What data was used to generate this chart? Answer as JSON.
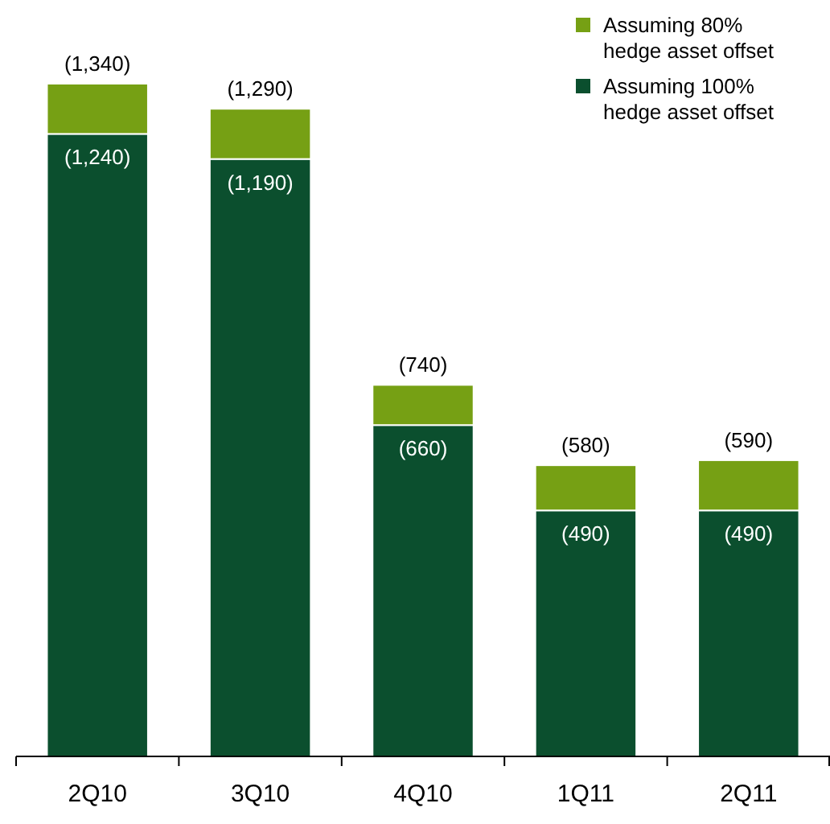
{
  "chart_data": {
    "type": "bar",
    "stacked": true,
    "categories": [
      "2Q10",
      "3Q10",
      "4Q10",
      "1Q11",
      "2Q11"
    ],
    "series": [
      {
        "name": "Assuming 100% hedge asset offset",
        "color": "#0b4f2e",
        "values": [
          1240,
          1190,
          660,
          490,
          490
        ],
        "value_labels": [
          "(1,240)",
          "(1,190)",
          "(660)",
          "(490)",
          "(490)"
        ]
      },
      {
        "name": "Assuming 80% hedge asset offset",
        "color": "#76a014",
        "values": [
          100,
          100,
          80,
          90,
          100
        ]
      }
    ],
    "totals": [
      "(1,340)",
      "(1,290)",
      "(740)",
      "(580)",
      "(590)"
    ],
    "legend": "top right"
  }
}
